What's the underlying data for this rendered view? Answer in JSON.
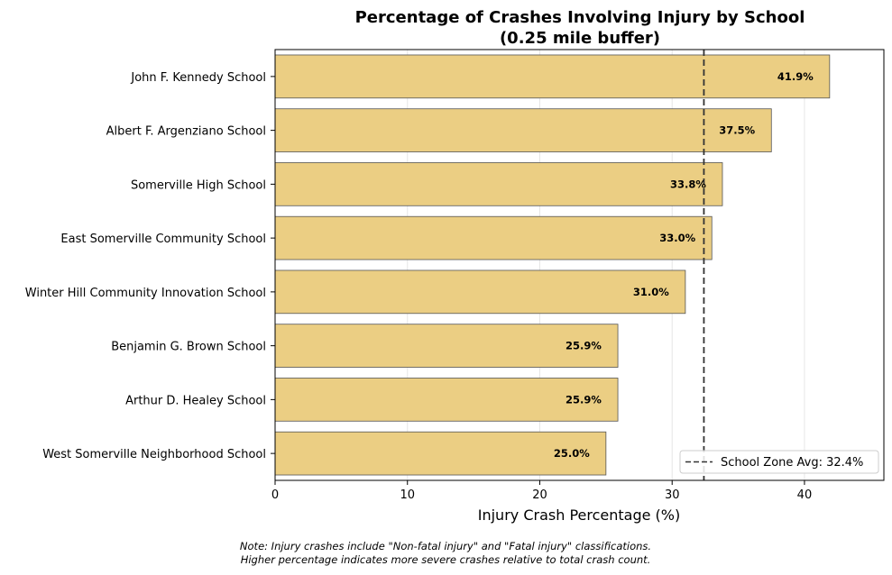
{
  "chart_data": {
    "type": "bar",
    "orientation": "horizontal",
    "title_lines": [
      "Percentage of Crashes Involving Injury by School",
      "(0.25 mile buffer)"
    ],
    "xlabel": "Injury Crash Percentage (%)",
    "ylabel": "",
    "xlim": [
      0,
      46
    ],
    "xticks": [
      0,
      10,
      20,
      30,
      40
    ],
    "grid": "vertical",
    "categories": [
      "John F. Kennedy School",
      "Albert F. Argenziano School",
      "Somerville High School",
      "East Somerville Community School",
      "Winter Hill Community Innovation School",
      "Benjamin G. Brown School",
      "Arthur D. Healey School",
      "West Somerville Neighborhood School"
    ],
    "values": [
      41.9,
      37.5,
      33.8,
      33.0,
      31.0,
      25.9,
      25.9,
      25.0
    ],
    "data_labels": [
      "41.9%",
      "37.5%",
      "33.8%",
      "33.0%",
      "31.0%",
      "25.9%",
      "25.9%",
      "25.0%"
    ],
    "bar_color": "#EBCE83",
    "bar_edge_color": "#555555",
    "reference_line": {
      "value": 32.4,
      "style": "dashed",
      "color": "#333333",
      "legend_label": "School Zone Avg: 32.4%"
    },
    "legend_position": "bottom-right",
    "note_lines": [
      "Note: Injury crashes include \"Non-fatal injury\" and \"Fatal injury\" classifications.",
      "Higher percentage indicates more severe crashes relative to total crash count."
    ]
  }
}
